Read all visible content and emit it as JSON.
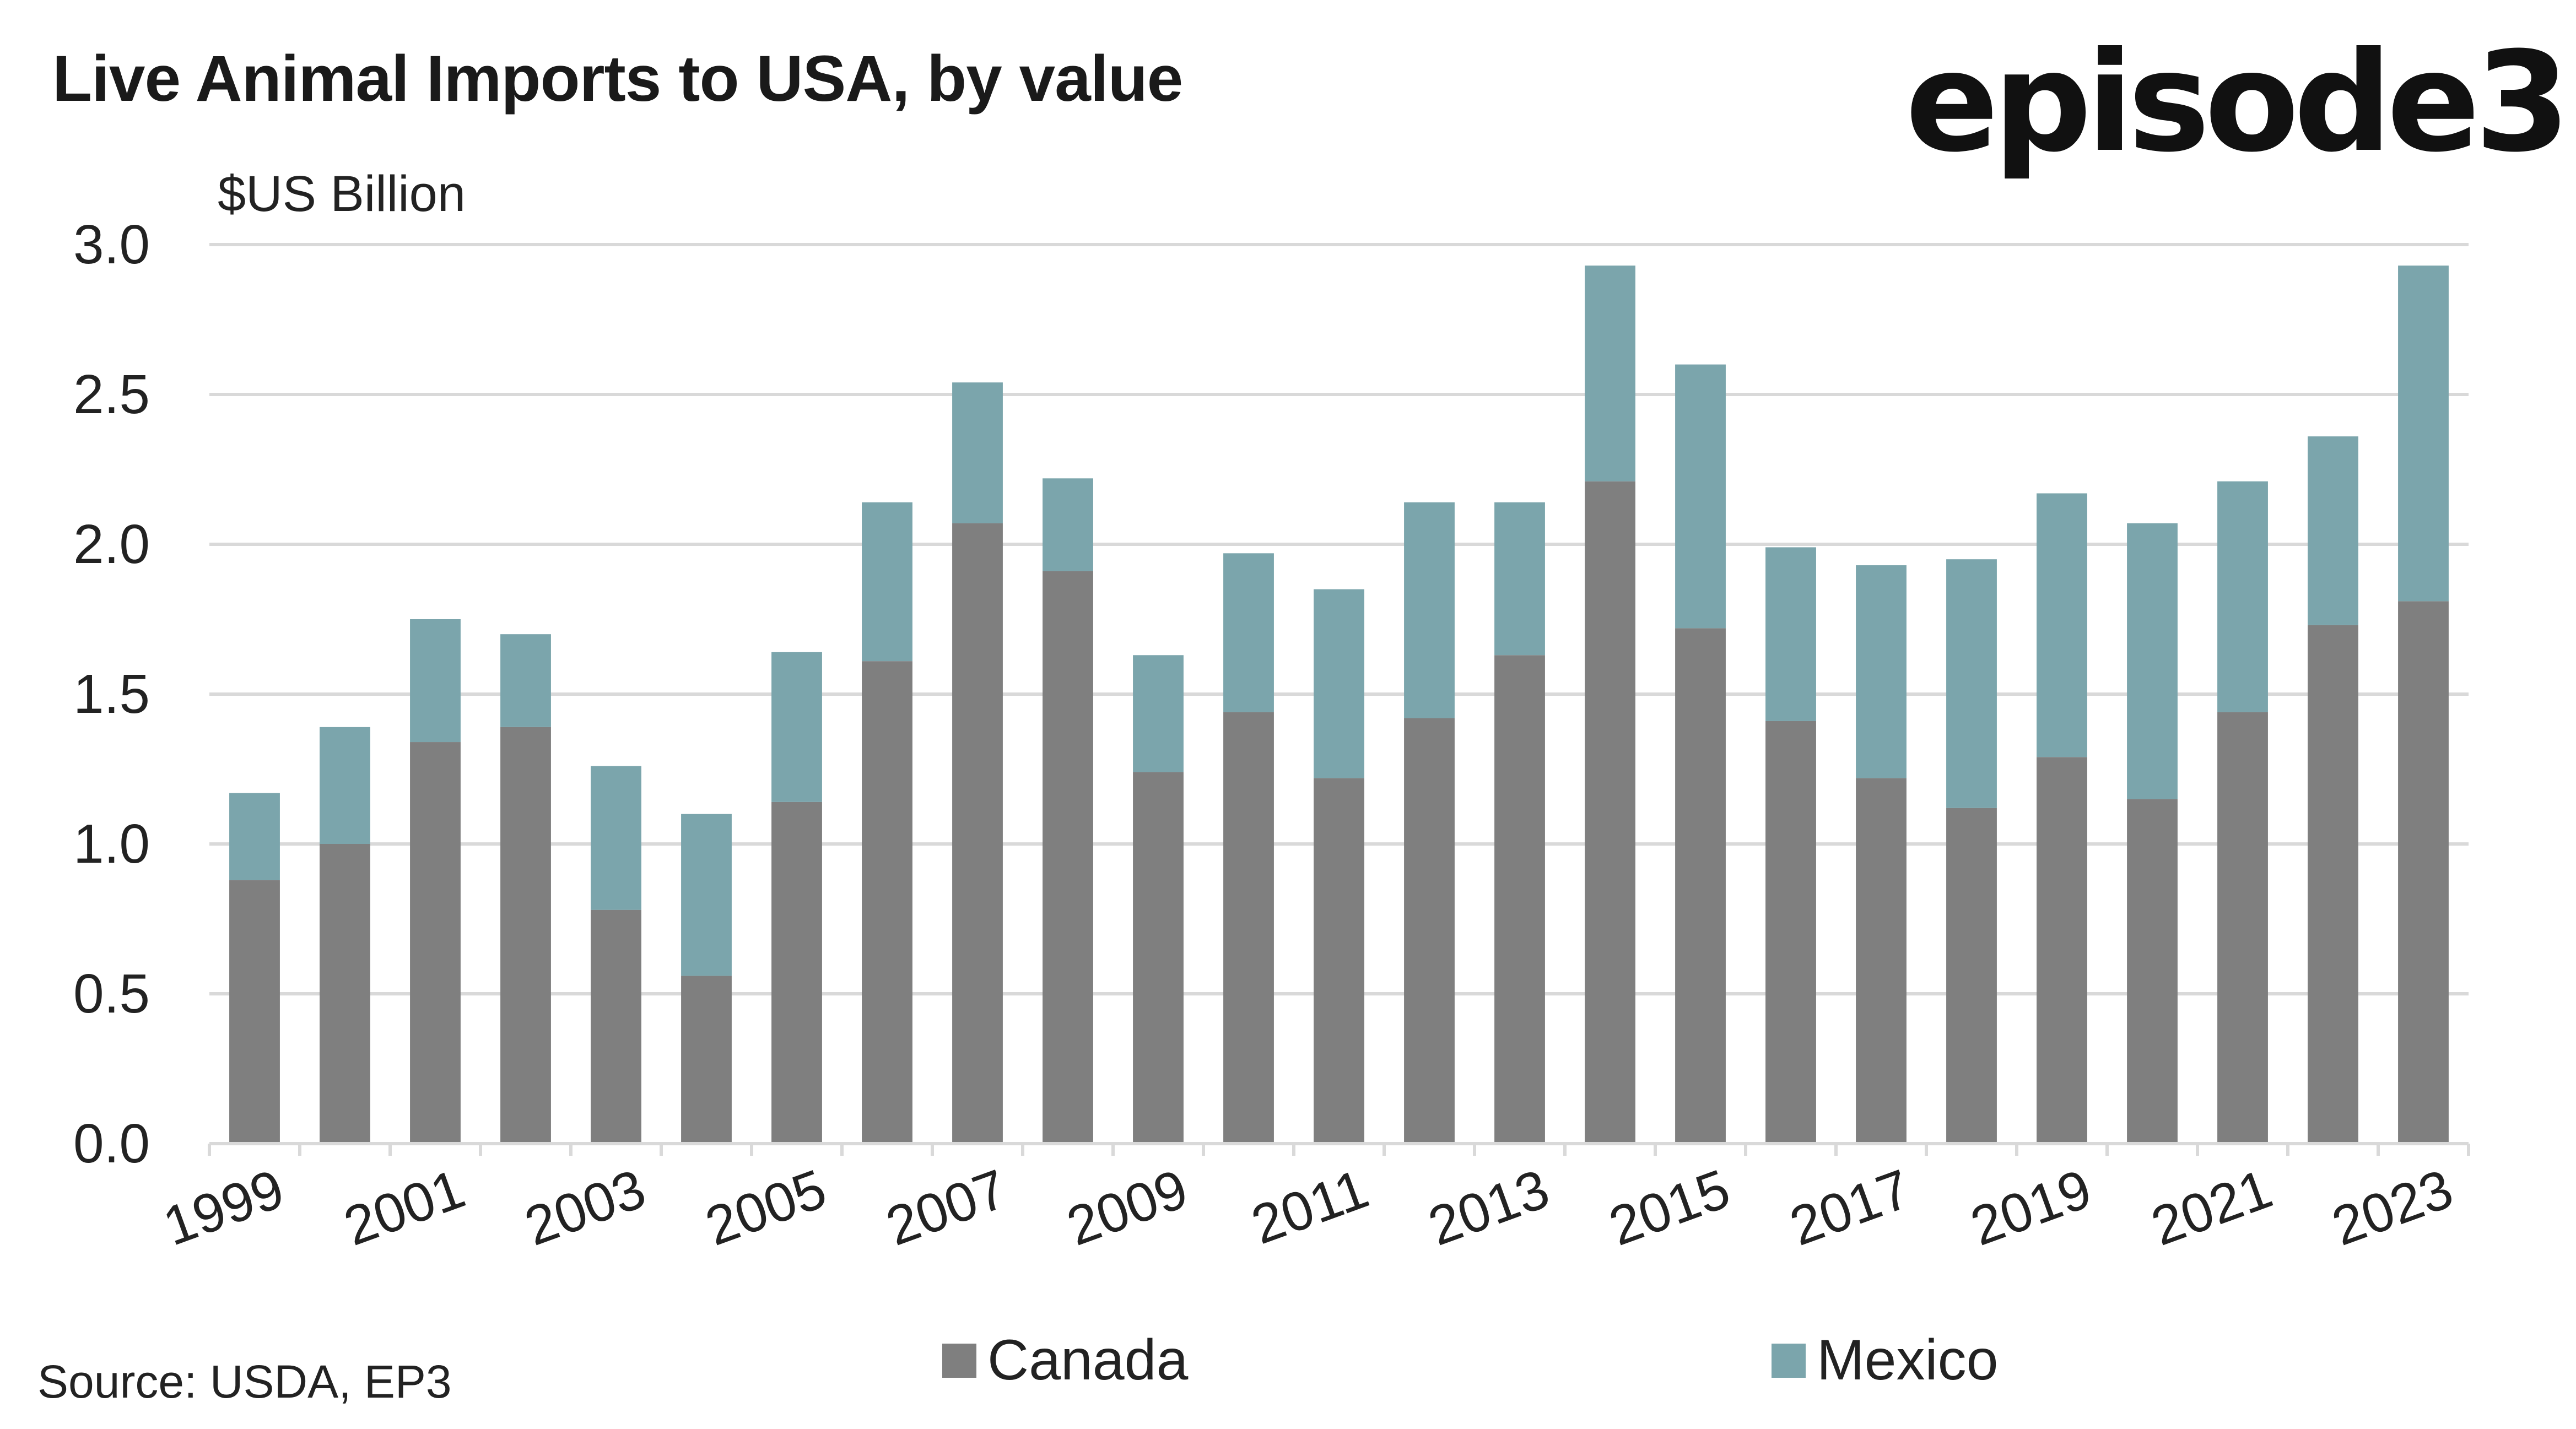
{
  "header": {
    "title": "Live Animal Imports to USA, by value",
    "logo": "episode3"
  },
  "footer": {
    "source": "Source: USDA, EP3"
  },
  "chart_data": {
    "type": "bar",
    "stacked": true,
    "title": "Live Animal Imports to USA, by value",
    "ylabel": "$US Billion",
    "xlabel": "",
    "ylim": [
      0,
      3.0
    ],
    "yticks": [
      "0.0",
      "0.5",
      "1.0",
      "1.5",
      "2.0",
      "2.5",
      "3.0"
    ],
    "ytick_values": [
      0,
      0.5,
      1.0,
      1.5,
      2.0,
      2.5,
      3.0
    ],
    "grid": true,
    "legend_position": "bottom",
    "categories": [
      "1999",
      "2000",
      "2001",
      "2002",
      "2003",
      "2004",
      "2005",
      "2006",
      "2007",
      "2008",
      "2009",
      "2010",
      "2011",
      "2012",
      "2013",
      "2014",
      "2015",
      "2016",
      "2017",
      "2018",
      "2019",
      "2020",
      "2021",
      "2022",
      "2023"
    ],
    "xtick_labels_shown": [
      "1999",
      "2001",
      "2003",
      "2005",
      "2007",
      "2009",
      "2011",
      "2013",
      "2015",
      "2017",
      "2019",
      "2021",
      "2023"
    ],
    "series": [
      {
        "name": "Canada",
        "color": "#7f7f7f",
        "values": [
          0.88,
          1.0,
          1.34,
          1.39,
          0.78,
          0.56,
          1.14,
          1.61,
          2.07,
          1.91,
          1.24,
          1.44,
          1.22,
          1.42,
          1.63,
          2.21,
          1.72,
          1.41,
          1.22,
          1.12,
          1.29,
          1.15,
          1.44,
          1.73,
          1.81
        ]
      },
      {
        "name": "Mexico",
        "color": "#7ba5ac",
        "values": [
          0.29,
          0.39,
          0.41,
          0.31,
          0.48,
          0.54,
          0.5,
          0.53,
          0.47,
          0.31,
          0.39,
          0.53,
          0.63,
          0.72,
          0.51,
          0.72,
          0.88,
          0.58,
          0.71,
          0.83,
          0.88,
          0.92,
          0.77,
          0.63,
          1.12
        ]
      }
    ]
  }
}
